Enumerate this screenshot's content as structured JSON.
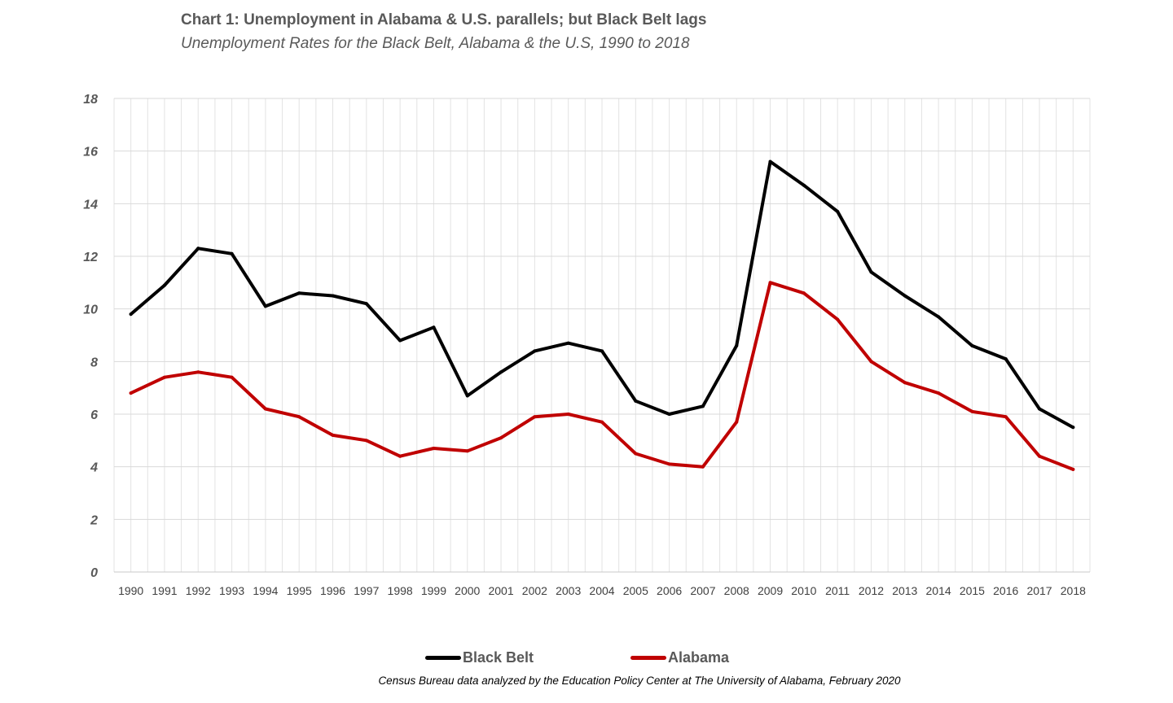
{
  "chart_data": {
    "type": "line",
    "title": "Chart 1:  Unemployment in Alabama & U.S. parallels; but Black Belt lags",
    "subtitle": "Unemployment Rates for the Black Belt, Alabama & the U.S, 1990 to 2018",
    "xlabel": "",
    "ylabel": "",
    "ylim": [
      0,
      18
    ],
    "yticks": [
      0,
      2,
      4,
      6,
      8,
      10,
      12,
      14,
      16,
      18
    ],
    "grid": true,
    "legend_position": "bottom",
    "categories": [
      "1990",
      "1991",
      "1992",
      "1993",
      "1994",
      "1995",
      "1996",
      "1997",
      "1998",
      "1999",
      "2000",
      "2001",
      "2002",
      "2003",
      "2004",
      "2005",
      "2006",
      "2007",
      "2008",
      "2009",
      "2010",
      "2011",
      "2012",
      "2013",
      "2014",
      "2015",
      "2016",
      "2017",
      "2018"
    ],
    "series": [
      {
        "name": "Black Belt",
        "color": "#000000",
        "values": [
          9.8,
          10.9,
          12.3,
          12.1,
          10.1,
          10.6,
          10.5,
          10.2,
          8.8,
          9.3,
          6.7,
          7.6,
          8.4,
          8.7,
          8.4,
          6.5,
          6.0,
          6.3,
          8.6,
          15.6,
          14.7,
          13.7,
          11.4,
          10.5,
          9.7,
          8.6,
          8.1,
          6.2,
          5.5
        ]
      },
      {
        "name": "Alabama",
        "color": "#C00000",
        "values": [
          6.8,
          7.4,
          7.6,
          7.4,
          6.2,
          5.9,
          5.2,
          5.0,
          4.4,
          4.7,
          4.6,
          5.1,
          5.9,
          6.0,
          5.7,
          4.5,
          4.1,
          4.0,
          5.7,
          11.0,
          10.6,
          9.6,
          8.0,
          7.2,
          6.8,
          6.1,
          5.9,
          4.4,
          3.9
        ]
      }
    ],
    "source_note": "Census Bureau data analyzed by the Education Policy Center at The University of Alabama, February 2020"
  }
}
